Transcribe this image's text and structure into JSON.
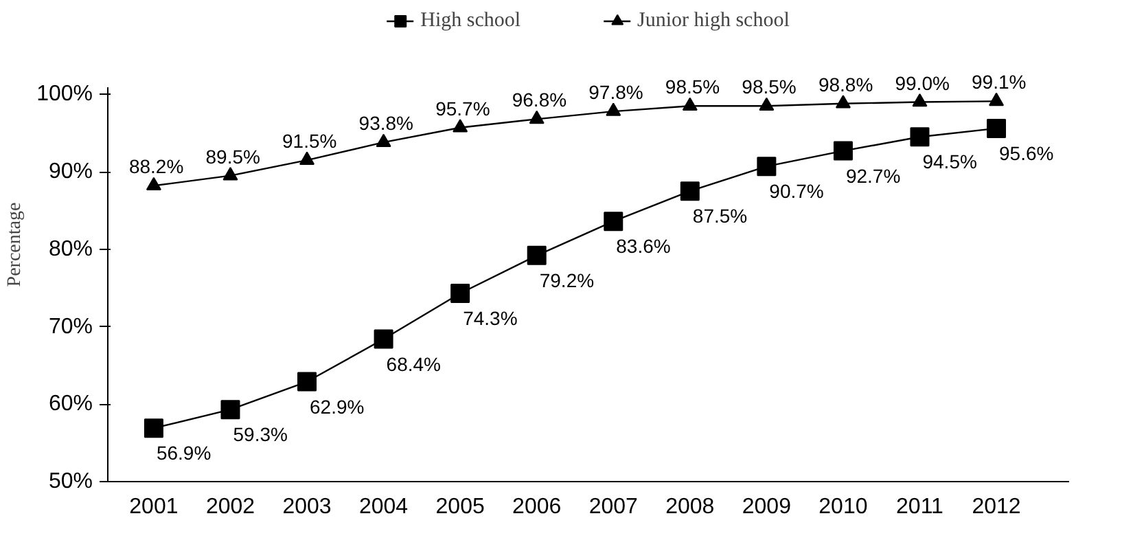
{
  "chart_data": {
    "type": "line",
    "ylabel": "Percentage",
    "categories": [
      "2001",
      "2002",
      "2003",
      "2004",
      "2005",
      "2006",
      "2007",
      "2008",
      "2009",
      "2010",
      "2011",
      "2012"
    ],
    "series": [
      {
        "name": "High school",
        "color": "#000000",
        "marker": "square",
        "values": [
          56.9,
          59.3,
          62.9,
          68.4,
          74.3,
          79.2,
          83.6,
          87.5,
          90.7,
          92.7,
          94.5,
          95.6
        ],
        "value_labels": [
          "56.9%",
          "59.3%",
          "62.9%",
          "68.4%",
          "74.3%",
          "79.2%",
          "83.6%",
          "87.5%",
          "90.7%",
          "92.7%",
          "94.5%",
          "95.6%"
        ]
      },
      {
        "name": "Junior high school",
        "color": "#000000",
        "marker": "triangle",
        "values": [
          88.2,
          89.5,
          91.5,
          93.8,
          95.7,
          96.8,
          97.8,
          98.5,
          98.5,
          98.8,
          99.0,
          99.1
        ],
        "value_labels": [
          "88.2%",
          "89.5%",
          "91.5%",
          "93.8%",
          "95.7%",
          "96.8%",
          "97.8%",
          "98.5%",
          "98.5%",
          "98.8%",
          "99.0%",
          "99.1%"
        ]
      }
    ],
    "ylim": [
      50,
      101
    ],
    "yticks": [
      {
        "value": 50,
        "label": "50%"
      },
      {
        "value": 60,
        "label": "60%"
      },
      {
        "value": 70,
        "label": "70%"
      },
      {
        "value": 80,
        "label": "80%"
      },
      {
        "value": 90,
        "label": "90%"
      },
      {
        "value": 100,
        "label": "100%"
      }
    ],
    "grid": false,
    "legend": "top",
    "line_style": "solid"
  }
}
